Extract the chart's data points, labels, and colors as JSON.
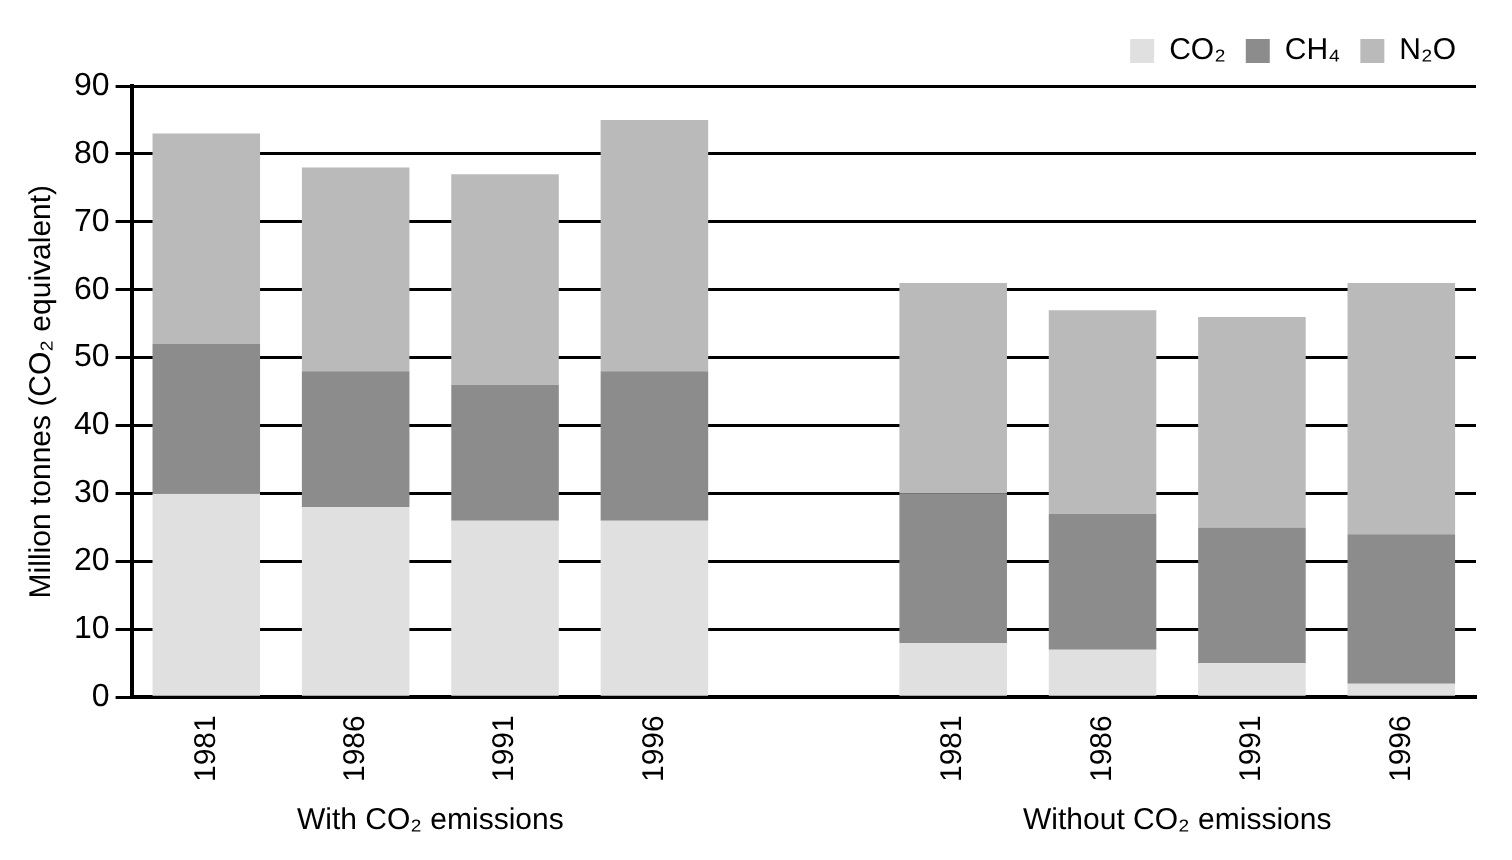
{
  "chart_data": {
    "type": "bar",
    "stacked": true,
    "ylabel": "Million tonnes (CO₂ equivalent)",
    "categories": [
      "1981",
      "1986",
      "1991",
      "1996",
      null,
      "1981",
      "1986",
      "1991",
      "1996"
    ],
    "series": [
      {
        "name": "CO₂",
        "color": "#e0e0e0",
        "values": [
          30,
          28,
          26,
          26,
          null,
          8,
          7,
          5,
          2
        ]
      },
      {
        "name": "CH₄",
        "color": "#8c8c8c",
        "values": [
          22,
          20,
          20,
          22,
          null,
          22,
          20,
          20,
          22
        ]
      },
      {
        "name": "N₂O",
        "color": "#bababa",
        "values": [
          31,
          30,
          31,
          37,
          null,
          31,
          30,
          31,
          37
        ]
      }
    ],
    "ylim": [
      0,
      90
    ],
    "yticks": [
      0,
      10,
      20,
      30,
      40,
      50,
      60,
      70,
      80,
      90
    ],
    "grid": "y",
    "legend": "top right",
    "annotations": [
      "With CO₂ emissions",
      "Without CO₂ emissions"
    ]
  }
}
